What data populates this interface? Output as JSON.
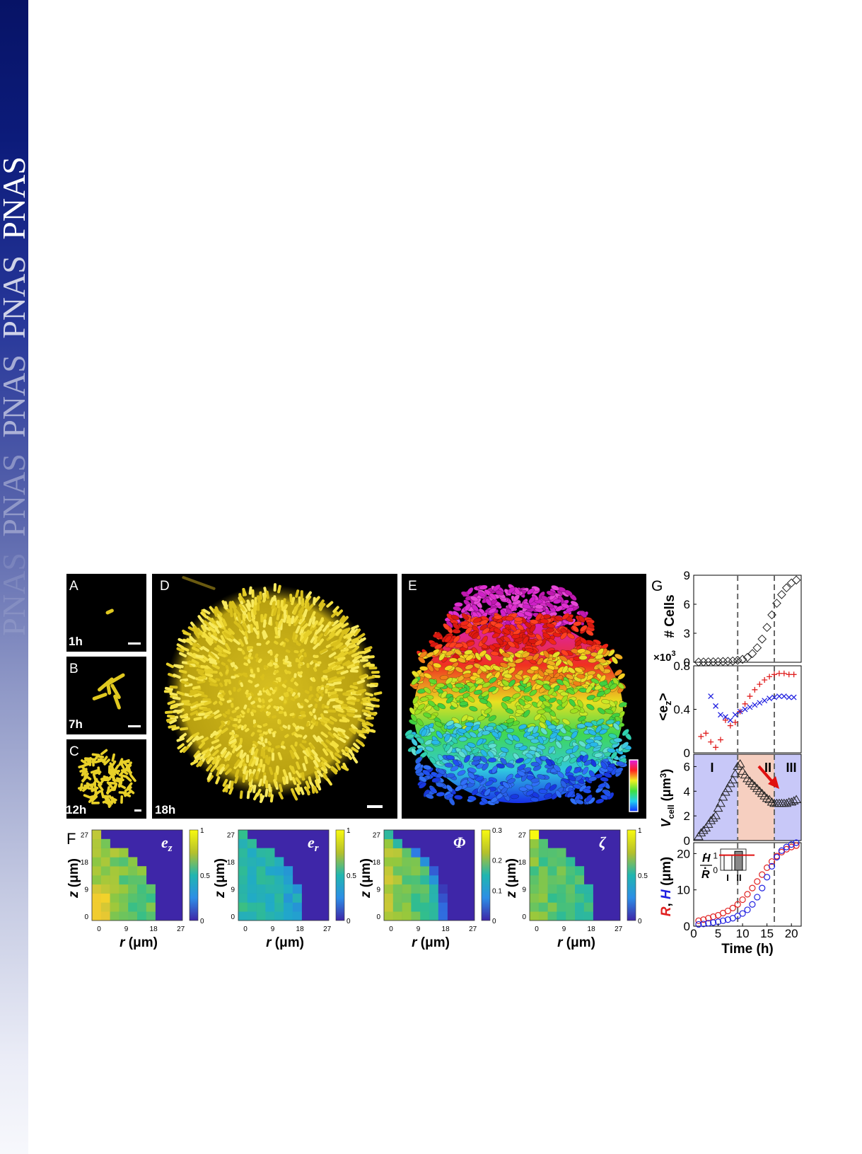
{
  "journal": {
    "watermark": "PNAS",
    "watermark_repeats": 5
  },
  "panels": {
    "A": {
      "letter": "A",
      "time": "1h"
    },
    "B": {
      "letter": "B",
      "time": "7h"
    },
    "C": {
      "letter": "C",
      "time": "12h"
    },
    "D": {
      "letter": "D",
      "time": "18h"
    },
    "E": {
      "letter": "E"
    },
    "F": {
      "letter": "F"
    },
    "G": {
      "letter": "G"
    }
  },
  "heatmaps": {
    "xlabel_var": "r",
    "xlabel_unit": " (μm)",
    "ylabel_var": "z",
    "ylabel_unit": " (μm)",
    "ticks": [
      "0",
      "9",
      "18",
      "27"
    ],
    "maps": [
      {
        "label": "e",
        "sub": "z",
        "cbar_ticks": [
          "1",
          "0.5",
          "0"
        ]
      },
      {
        "label": "e",
        "sub": "r",
        "cbar_ticks": [
          "1",
          "0.5",
          "0"
        ]
      },
      {
        "label": "Φ",
        "sub": "",
        "cbar_ticks": [
          "0.3",
          "0.2",
          "0.1",
          "0"
        ]
      },
      {
        "label": "ζ",
        "sub": "",
        "cbar_ticks": [
          "1",
          "0.5",
          "0"
        ]
      }
    ]
  },
  "timeplots": {
    "cells": {
      "ylabel": "# Cells",
      "multiplier": "×10",
      "multiplier_exp": "3",
      "ticks": [
        "9",
        "6",
        "3",
        "0"
      ]
    },
    "ez": {
      "ylabel": "<e",
      "ylabel_sub": "z",
      "ylabel_end": ">",
      "ticks": [
        "0.8",
        "0.4",
        "0"
      ]
    },
    "vcell": {
      "ylabel": "V",
      "ylabel_sub": "cell",
      "ylabel_unit": " (μm",
      "ylabel_exp": "3",
      "ylabel_close": ")",
      "ticks": [
        "6",
        "4",
        "2",
        "0"
      ],
      "phases": [
        "I",
        "II",
        "III"
      ]
    },
    "rh": {
      "ylabel_r": "R",
      "ylabel_sep": ", ",
      "ylabel_h": "H",
      "ylabel_unit": " (μm)",
      "ticks": [
        "20",
        "10",
        "0"
      ],
      "inset_num": "H",
      "inset_den": "R",
      "inset_ticks": [
        "1",
        "0"
      ],
      "inset_bars": [
        "I",
        "II"
      ]
    },
    "xlabel": "Time (h)",
    "xticks": [
      "0",
      "5",
      "10",
      "15",
      "20"
    ]
  },
  "chart_data": [
    {
      "type": "scatter",
      "title": "# Cells",
      "xlabel": "Time (h)",
      "ylabel": "# Cells (×10^3)",
      "xlim": [
        0,
        22
      ],
      "ylim": [
        0,
        9
      ],
      "series": [
        {
          "name": "",
          "x": [
            1,
            2,
            3,
            4,
            5,
            6,
            7,
            8,
            9,
            10,
            11,
            12,
            13,
            14,
            15,
            16,
            17,
            18,
            19,
            20,
            21
          ],
          "y": [
            0.02,
            0.03,
            0.04,
            0.05,
            0.06,
            0.08,
            0.1,
            0.13,
            0.2,
            0.3,
            0.5,
            0.9,
            1.5,
            2.4,
            3.6,
            4.9,
            6.1,
            7.0,
            7.7,
            8.2,
            8.5
          ]
        }
      ],
      "vlines": [
        9,
        16.5
      ]
    },
    {
      "type": "scatter",
      "title": "<ez>",
      "xlabel": "Time (h)",
      "ylabel": "<ez>",
      "xlim": [
        0,
        22
      ],
      "ylim": [
        0,
        0.8
      ],
      "series": [
        {
          "name": "",
          "color": "#e02020",
          "x": [
            1.5,
            2.5,
            3.5,
            4.5,
            5.5,
            6.5,
            7.5,
            8.5,
            9.5,
            10.5,
            11.5,
            12.5,
            13.5,
            14.5,
            15.5,
            16.5,
            17.5,
            18.5,
            19.5,
            20.5
          ],
          "y": [
            0.15,
            0.18,
            0.1,
            0.05,
            0.12,
            0.3,
            0.25,
            0.28,
            0.38,
            0.45,
            0.52,
            0.58,
            0.63,
            0.67,
            0.7,
            0.72,
            0.73,
            0.73,
            0.72,
            0.72
          ]
        },
        {
          "name": "",
          "color": "#2020e0",
          "x": [
            3.5,
            4.5,
            5.5,
            6.5,
            7.5,
            8.5,
            9.5,
            10.5,
            11.5,
            12.5,
            13.5,
            14.5,
            15.5,
            16.5,
            17.5,
            18.5,
            19.5,
            20.5
          ],
          "y": [
            0.52,
            0.43,
            0.35,
            0.33,
            0.3,
            0.35,
            0.38,
            0.4,
            0.42,
            0.44,
            0.46,
            0.48,
            0.5,
            0.51,
            0.52,
            0.52,
            0.51,
            0.51
          ]
        }
      ],
      "vlines": [
        9,
        16.5
      ]
    },
    {
      "type": "scatter",
      "title": "Vcell",
      "xlabel": "Time (h)",
      "ylabel": "Vcell (μm^3)",
      "xlim": [
        0,
        22
      ],
      "ylim": [
        0,
        7
      ],
      "series": [
        {
          "name": "",
          "x": [
            1,
            1.5,
            2,
            2.5,
            3,
            3.5,
            4,
            4.5,
            5,
            5.5,
            6,
            6.5,
            7,
            7.5,
            8,
            8.5,
            9,
            9.5,
            10,
            10.5,
            11,
            11.5,
            12,
            12.5,
            13,
            13.5,
            14,
            14.5,
            15,
            15.5,
            16,
            16.5,
            17,
            17.5,
            18,
            18.5,
            19,
            19.5,
            20,
            20.5,
            21
          ],
          "y": [
            0.3,
            0.6,
            0.8,
            1.0,
            1.3,
            1.6,
            1.8,
            2.0,
            2.6,
            3.0,
            3.5,
            3.9,
            4.2,
            4.6,
            4.9,
            5.4,
            6.0,
            6.2,
            5.6,
            5.3,
            5.0,
            4.8,
            4.6,
            4.4,
            4.2,
            4.0,
            3.8,
            3.6,
            3.4,
            3.3,
            3.1,
            3.0,
            3.0,
            3.0,
            3.0,
            3.0,
            3.0,
            3.1,
            3.1,
            3.2,
            3.3
          ]
        }
      ],
      "phases": [
        "I",
        "II",
        "III"
      ],
      "vlines": [
        9,
        16.5
      ]
    },
    {
      "type": "scatter",
      "title": "R, H",
      "xlabel": "Time (h)",
      "ylabel": "R, H (μm)",
      "xlim": [
        0,
        22
      ],
      "ylim": [
        0,
        23
      ],
      "series": [
        {
          "name": "R",
          "color": "#e02020",
          "x": [
            1,
            2,
            3,
            4,
            5,
            6,
            7,
            8,
            9,
            10,
            11,
            12,
            13,
            14,
            15,
            16,
            17,
            18,
            19,
            20,
            21
          ],
          "y": [
            1.5,
            1.8,
            2.2,
            2.6,
            3.0,
            3.6,
            4.2,
            5.0,
            6.0,
            7.3,
            8.8,
            10.5,
            12.3,
            14.2,
            16.1,
            17.8,
            19.3,
            20.4,
            21.2,
            21.8,
            22.2
          ]
        },
        {
          "name": "H",
          "color": "#2020e0",
          "x": [
            1,
            2,
            3,
            4,
            5,
            6,
            7,
            8,
            9,
            10,
            11,
            12,
            13,
            14,
            15,
            16,
            17,
            18,
            19,
            20,
            21
          ],
          "y": [
            0.5,
            0.6,
            0.8,
            1.0,
            1.2,
            1.5,
            1.8,
            2.2,
            2.8,
            3.5,
            4.5,
            6.0,
            8.0,
            10.5,
            13.5,
            16.5,
            19.0,
            20.8,
            21.8,
            22.5,
            23.0
          ]
        }
      ],
      "inset": {
        "categories": [
          "I",
          "II"
        ],
        "values": [
          1.0,
          1.25
        ],
        "reference": 1.0
      },
      "vlines": [
        9,
        16.5
      ]
    }
  ]
}
